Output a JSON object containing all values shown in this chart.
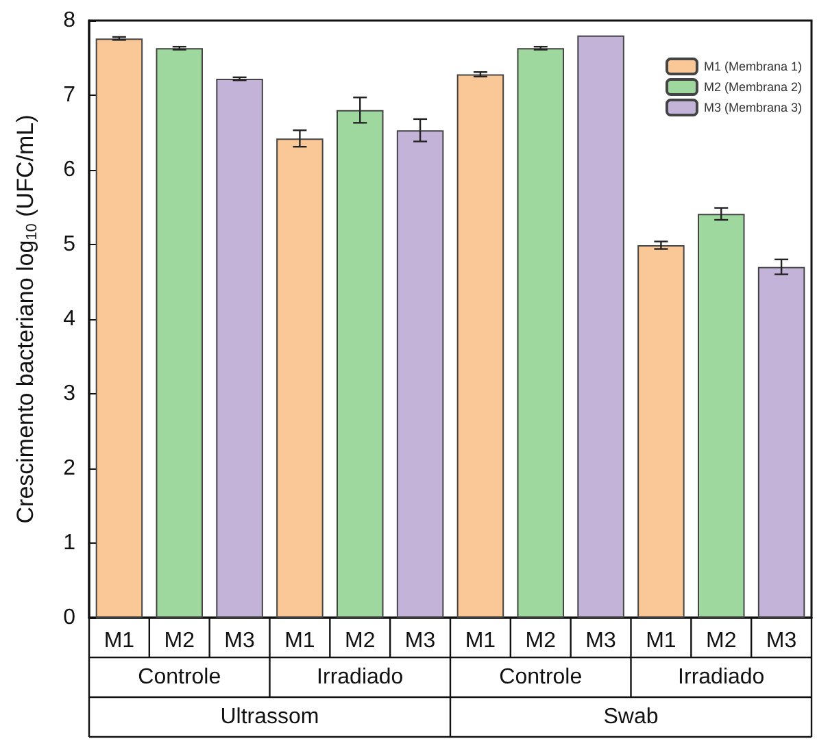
{
  "chart_data": {
    "type": "bar",
    "ylabel": "Crescimento bacteriano log$_{10}$ (UFC/mL)",
    "categories": [
      "M1",
      "M2",
      "M3",
      "M1",
      "M2",
      "M3",
      "M1",
      "M2",
      "M3",
      "M1",
      "M2",
      "M3"
    ],
    "annotations": [
      "Controle",
      "Irradiado",
      "Controle",
      "Irradiado",
      "Ultrassom",
      "Swab"
    ],
    "series": [
      {
        "name": "M1 (Membrana 1)",
        "color": "#fac896",
        "values": [
          7.76,
          null,
          null,
          6.42,
          null,
          null,
          7.28,
          null,
          null,
          4.99,
          null,
          null
        ],
        "errors": [
          0.02,
          null,
          null,
          0.11,
          null,
          null,
          0.03,
          null,
          null,
          0.05,
          null,
          null
        ]
      },
      {
        "name": "M2 (Membrana 2)",
        "color": "#9fd89f",
        "values": [
          null,
          7.63,
          null,
          null,
          6.8,
          null,
          null,
          7.63,
          null,
          null,
          5.41,
          null
        ],
        "errors": [
          null,
          0.02,
          null,
          null,
          0.17,
          null,
          null,
          0.02,
          null,
          null,
          0.08,
          null
        ]
      },
      {
        "name": "M3 (Membrana 3)",
        "color": "#c3b3d8",
        "values": [
          null,
          null,
          7.22,
          null,
          null,
          6.53,
          null,
          null,
          7.8,
          null,
          null,
          4.7
        ],
        "errors": [
          null,
          null,
          0.02,
          null,
          null,
          0.15,
          null,
          null,
          null,
          null,
          null,
          0.1
        ]
      }
    ],
    "ylim": [
      0,
      8
    ],
    "yticks": [
      0,
      1,
      2,
      3,
      4,
      5,
      6,
      7,
      8
    ],
    "grid": false,
    "legend": "top right"
  }
}
